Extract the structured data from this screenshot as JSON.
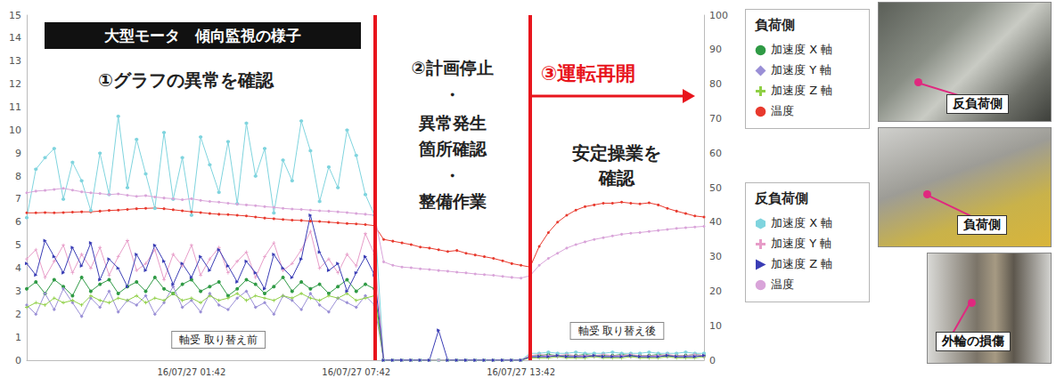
{
  "chart_data": {
    "type": "line",
    "title": "大型モータ　傾向監視の様子",
    "categories": [
      null,
      null,
      null,
      null,
      null,
      null,
      null,
      null,
      null,
      null,
      null,
      null,
      null,
      null,
      null,
      null,
      null,
      null,
      "16/07/27 01:42",
      null,
      null,
      null,
      null,
      null,
      null,
      null,
      null,
      null,
      null,
      null,
      null,
      null,
      null,
      null,
      null,
      null,
      "16/07/27 07:42",
      null,
      null,
      null,
      null,
      null,
      null,
      null,
      null,
      null,
      null,
      null,
      null,
      null,
      null,
      null,
      null,
      null,
      "16/07/27 13:42",
      null,
      null,
      null,
      null,
      null,
      null,
      null,
      null,
      null,
      null,
      null,
      null,
      null,
      null,
      null,
      null,
      null,
      null,
      null,
      null
    ],
    "ylim": [
      0,
      15
    ],
    "yticks": [
      0,
      1,
      2,
      3,
      4,
      5,
      6,
      7,
      8,
      9,
      10,
      11,
      12,
      13,
      14,
      15
    ],
    "y2lim": [
      0,
      100
    ],
    "y2ticks": [
      0,
      10,
      20,
      30,
      40,
      50,
      60,
      70,
      80,
      90,
      100
    ],
    "grid": false,
    "legend": "right",
    "dividers": [
      38,
      55
    ],
    "annotations": {
      "phase1": "①グラフの異常を確認",
      "phase2": [
        "②計画停止",
        "・",
        "異常発生",
        "箇所確認",
        "・",
        "整備作業"
      ],
      "phase3": "③運転再開",
      "phase3_note": [
        "安定操業を",
        "確認"
      ],
      "before": "軸受 取り替え前",
      "after": "軸受 取り替え後"
    },
    "series": [
      {
        "group": "負荷側",
        "name": "加速度 X 軸",
        "color": "#2f9a45",
        "marker": "circle",
        "values": [
          3.1,
          3.4,
          2.9,
          3.5,
          3.2,
          2.8,
          3.6,
          3.0,
          3.3,
          3.5,
          2.9,
          3.2,
          3.4,
          3.0,
          3.6,
          3.1,
          2.9,
          3.3,
          3.5,
          3.0,
          3.2,
          3.4,
          2.8,
          3.1,
          3.5,
          3.3,
          2.9,
          3.2,
          3.6,
          3.0,
          3.4,
          3.1,
          3.3,
          2.9,
          3.2,
          3.5,
          3.0,
          3.3,
          3.1,
          0,
          0,
          0,
          0,
          0,
          0,
          0,
          0,
          0,
          0,
          0,
          0,
          0,
          0,
          0,
          0,
          0.2,
          0.2,
          0.25,
          0.2,
          0.2,
          0.2,
          0.25,
          0.2,
          0.2,
          0.2,
          0.25,
          0.2,
          0.2,
          0.2,
          0.25,
          0.2,
          0.2,
          0.2,
          0.25,
          0.2
        ]
      },
      {
        "group": "負荷側",
        "name": "加速度 Y 軸",
        "color": "#9a8fd6",
        "marker": "diamond",
        "values": [
          2.4,
          2.0,
          2.9,
          2.2,
          3.1,
          2.5,
          1.9,
          2.7,
          2.3,
          3.0,
          2.1,
          2.6,
          2.4,
          2.8,
          2.0,
          2.5,
          3.2,
          2.3,
          2.6,
          2.1,
          2.9,
          2.4,
          2.2,
          2.7,
          3.0,
          2.3,
          2.5,
          2.0,
          2.8,
          2.6,
          2.2,
          2.9,
          2.4,
          2.1,
          2.7,
          2.5,
          2.3,
          2.8,
          2.4,
          0,
          0,
          0,
          0,
          0,
          0,
          0,
          0,
          0,
          0,
          0,
          0,
          0,
          0,
          0,
          0,
          0.15,
          0.15,
          0.2,
          0.15,
          0.15,
          0.15,
          0.2,
          0.15,
          0.15,
          0.15,
          0.2,
          0.15,
          0.15,
          0.15,
          0.2,
          0.15,
          0.15,
          0.15,
          0.2,
          0.15
        ]
      },
      {
        "group": "負荷側",
        "name": "加速度 Z 軸",
        "color": "#8fcf45",
        "marker": "plus",
        "values": [
          2.3,
          2.5,
          2.4,
          2.7,
          2.5,
          2.6,
          2.4,
          2.8,
          2.6,
          2.5,
          2.7,
          2.6,
          2.8,
          2.5,
          2.7,
          2.6,
          2.9,
          2.6,
          2.7,
          2.5,
          2.8,
          2.6,
          2.7,
          2.9,
          2.6,
          2.8,
          2.7,
          2.6,
          2.8,
          2.7,
          2.9,
          2.7,
          2.6,
          2.8,
          2.7,
          2.9,
          2.6,
          2.7,
          2.8,
          0,
          0,
          0,
          0,
          0,
          0,
          0,
          0,
          0,
          0,
          0,
          0,
          0,
          0,
          0,
          0,
          0.1,
          0.1,
          0.1,
          0.15,
          0.1,
          0.1,
          0.1,
          0.15,
          0.1,
          0.1,
          0.1,
          0.15,
          0.1,
          0.1,
          0.1,
          0.15,
          0.1,
          0.1,
          0.1,
          0.15
        ]
      },
      {
        "group": "負荷側",
        "name": "温度",
        "color": "#e8392d",
        "marker": "circle",
        "axis": "y2",
        "values": [
          42.7,
          42.7,
          42.8,
          42.7,
          42.8,
          42.9,
          43.0,
          43.0,
          43.2,
          43.4,
          43.5,
          43.7,
          43.9,
          44.0,
          44.1,
          43.9,
          43.6,
          43.3,
          43.0,
          42.8,
          42.5,
          42.3,
          42.2,
          42.0,
          41.8,
          41.5,
          41.2,
          41.0,
          40.8,
          40.6,
          40.5,
          40.3,
          40.2,
          40.0,
          39.8,
          39.6,
          39.5,
          39.3,
          39.0,
          35.0,
          34.5,
          34.0,
          33.5,
          32.8,
          32.5,
          32.0,
          31.5,
          31.8,
          31.0,
          30.5,
          30.0,
          29.5,
          28.8,
          28.0,
          27.5,
          27.0,
          33.0,
          37.0,
          40.0,
          42.0,
          43.5,
          44.5,
          45.0,
          45.5,
          45.5,
          45.8,
          45.5,
          45.3,
          45.6,
          45.0,
          44.0,
          43.2,
          42.5,
          41.8,
          41.5
        ]
      },
      {
        "group": "反負荷側",
        "name": "加速度 X 軸",
        "color": "#7fd4de",
        "marker": "hexagon",
        "values": [
          6.2,
          8.3,
          8.8,
          9.2,
          7.0,
          8.6,
          7.8,
          6.5,
          9.0,
          7.2,
          10.6,
          7.5,
          9.6,
          8.1,
          6.6,
          9.9,
          7.0,
          8.8,
          6.3,
          9.7,
          8.5,
          7.3,
          9.5,
          6.8,
          10.3,
          8.0,
          9.2,
          6.4,
          8.7,
          7.8,
          10.4,
          9.1,
          6.9,
          8.4,
          7.5,
          10.0,
          8.9,
          7.2,
          6.3,
          0,
          0,
          0,
          0,
          0,
          0,
          0,
          0,
          0,
          0,
          0,
          0,
          0,
          0,
          0,
          0,
          0.3,
          0.3,
          0.35,
          0.3,
          0.3,
          0.35,
          0.3,
          0.3,
          0.3,
          0.35,
          0.3,
          0.3,
          0.3,
          0.35,
          0.3,
          0.3,
          0.3,
          0.35,
          0.3,
          0.3
        ]
      },
      {
        "group": "反負荷側",
        "name": "加速度 Y 軸",
        "color": "#e79cc8",
        "marker": "plus",
        "values": [
          4.4,
          4.8,
          3.6,
          4.3,
          5.0,
          3.8,
          4.6,
          4.0,
          4.9,
          3.7,
          4.5,
          5.2,
          3.9,
          4.2,
          4.8,
          3.5,
          4.6,
          4.1,
          5.0,
          3.7,
          4.4,
          4.9,
          3.8,
          4.3,
          4.7,
          3.6,
          4.5,
          5.1,
          3.9,
          4.2,
          4.8,
          5.6,
          4.0,
          4.4,
          3.8,
          4.6,
          4.1,
          5.5,
          4.6,
          0,
          0,
          0,
          0,
          0,
          0,
          0,
          0,
          0,
          0,
          0,
          0,
          0,
          0,
          0,
          0,
          0.2,
          0.25,
          0.2,
          0.2,
          0.25,
          0.2,
          0.2,
          0.2,
          0.25,
          0.2,
          0.2,
          0.25,
          0.2,
          0.2,
          0.2,
          0.25,
          0.2,
          0.2,
          0.25,
          0.2
        ]
      },
      {
        "group": "反負荷側",
        "name": "加速度 Z 軸",
        "color": "#3a3db5",
        "marker": "triangle",
        "values": [
          4.2,
          3.7,
          5.2,
          4.5,
          3.8,
          4.9,
          4.1,
          5.1,
          3.5,
          4.4,
          4.0,
          3.2,
          4.6,
          3.9,
          5.0,
          4.3,
          3.3,
          4.2,
          3.6,
          4.5,
          3.9,
          4.8,
          4.1,
          3.4,
          4.3,
          3.8,
          3.1,
          4.6,
          4.0,
          3.6,
          4.4,
          6.3,
          4.7,
          3.9,
          4.2,
          3.0,
          3.8,
          4.5,
          3.7,
          0,
          0,
          0,
          0,
          0,
          0,
          1.3,
          0,
          0,
          0,
          0,
          0,
          0,
          0,
          0,
          0,
          0.15,
          0.15,
          0.15,
          0.2,
          0.15,
          0.15,
          0.15,
          0.2,
          0.15,
          0.15,
          0.15,
          0.2,
          0.15,
          0.15,
          0.15,
          0.2,
          0.15,
          0.15,
          0.15,
          0.2
        ]
      },
      {
        "group": "反負荷側",
        "name": "温度",
        "color": "#d9a4d9",
        "marker": "circle",
        "axis": "y2",
        "values": [
          48.5,
          49.0,
          49.2,
          49.5,
          49.8,
          49.3,
          48.8,
          48.5,
          48.3,
          48.0,
          48.2,
          47.8,
          47.5,
          47.7,
          47.3,
          47.0,
          46.8,
          46.5,
          46.8,
          46.3,
          46.0,
          45.8,
          45.5,
          45.2,
          45.0,
          44.8,
          44.5,
          44.3,
          44.0,
          43.8,
          43.7,
          43.5,
          43.3,
          43.2,
          43.0,
          42.8,
          42.5,
          42.3,
          42.0,
          28.5,
          27.5,
          27.0,
          26.8,
          26.5,
          26.3,
          26.0,
          25.8,
          25.5,
          25.3,
          25.0,
          24.8,
          24.6,
          24.3,
          24.0,
          23.8,
          24.5,
          27.5,
          29.5,
          31.0,
          32.5,
          33.5,
          34.3,
          35.0,
          35.5,
          36.0,
          36.5,
          36.8,
          37.0,
          37.3,
          37.6,
          37.9,
          38.2,
          38.4,
          38.6,
          38.8
        ]
      }
    ]
  },
  "photos": [
    "反負荷側",
    "負荷側",
    "外輪の損傷"
  ]
}
